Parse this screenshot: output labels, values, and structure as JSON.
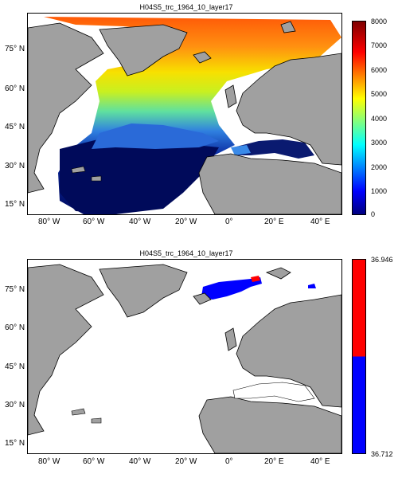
{
  "panels": [
    {
      "title": "H04S5_trc_1964_10_layer17",
      "colorbar_ticks": [
        "8000",
        "7000",
        "6000",
        "5000",
        "4000",
        "3000",
        "2000",
        "1000",
        "0"
      ],
      "colormap": "jet",
      "range": [
        0,
        8000
      ]
    },
    {
      "title": "H04S5_trc_1964_10_layer17",
      "colorbar_ticks": [
        "36.946",
        "36.712"
      ],
      "colormap": "two-color",
      "colors": [
        "#ff0000",
        "#0000ff"
      ]
    }
  ],
  "lat_labels": [
    "75° N",
    "60° N",
    "45° N",
    "30° N",
    "15° N"
  ],
  "lon_labels": [
    "80° W",
    "60° W",
    "40° W",
    "20° W",
    "0°",
    "20° E",
    "40° E"
  ],
  "land_color": "#a0a0a0",
  "ocean_color": "#ffffff"
}
